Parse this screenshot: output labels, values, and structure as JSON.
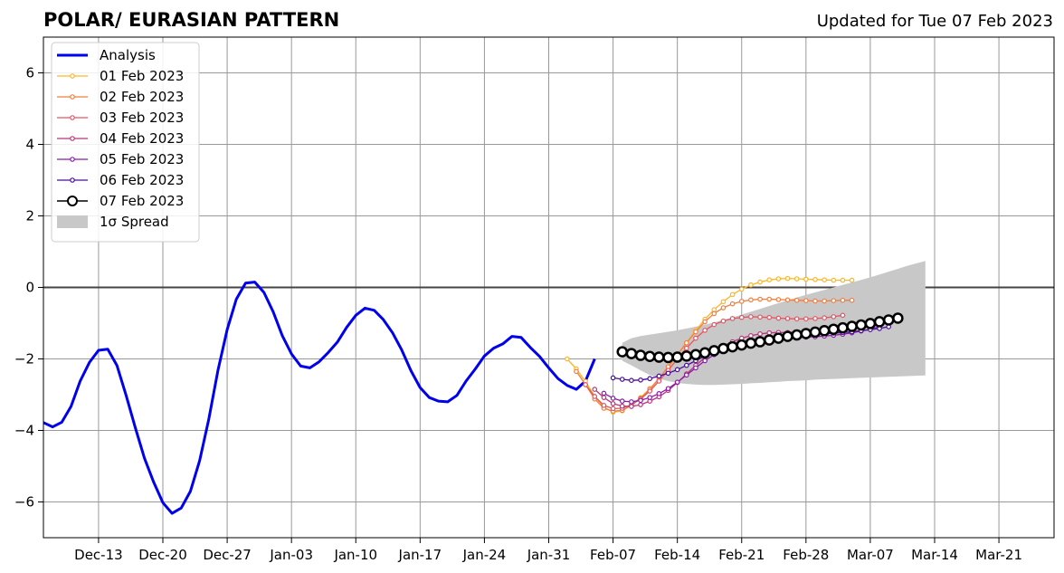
{
  "chart_data": {
    "type": "line",
    "title": "POLAR/ EURASIAN  PATTERN",
    "subtitle": "Updated for Tue 07 Feb 2023",
    "xlabel": "",
    "ylabel": "",
    "ylim": [
      -7,
      7
    ],
    "xlim": [
      "2022-12-07",
      "2023-03-27"
    ],
    "grid": true,
    "legend_position": "top-left",
    "x_ticks": [
      {
        "date": "2022-12-13",
        "label": "Dec-13"
      },
      {
        "date": "2022-12-20",
        "label": "Dec-20"
      },
      {
        "date": "2022-12-27",
        "label": "Dec-27"
      },
      {
        "date": "2023-01-03",
        "label": "Jan-03"
      },
      {
        "date": "2023-01-10",
        "label": "Jan-10"
      },
      {
        "date": "2023-01-17",
        "label": "Jan-17"
      },
      {
        "date": "2023-01-24",
        "label": "Jan-24"
      },
      {
        "date": "2023-01-31",
        "label": "Jan-31"
      },
      {
        "date": "2023-02-07",
        "label": "Feb-07"
      },
      {
        "date": "2023-02-14",
        "label": "Feb-14"
      },
      {
        "date": "2023-02-21",
        "label": "Feb-21"
      },
      {
        "date": "2023-02-28",
        "label": "Feb-28"
      },
      {
        "date": "2023-03-07",
        "label": "Mar-07"
      },
      {
        "date": "2023-03-14",
        "label": "Mar-14"
      },
      {
        "date": "2023-03-21",
        "label": "Mar-21"
      }
    ],
    "y_ticks": [
      {
        "value": 6,
        "label": "6"
      },
      {
        "value": 4,
        "label": "4"
      },
      {
        "value": 2,
        "label": "2"
      },
      {
        "value": 0,
        "label": "0"
      },
      {
        "value": -2,
        "label": "−2"
      },
      {
        "value": -4,
        "label": "−4"
      },
      {
        "value": -6,
        "label": "−6"
      }
    ],
    "colors": {
      "analysis": "#0000ee",
      "spread": "#c8c8c8",
      "grid": "#999999",
      "zero_line": "#444444"
    },
    "analysis": {
      "name": "Analysis",
      "start": "2022-12-07",
      "values": [
        -3.78,
        -3.9,
        -3.77,
        -3.33,
        -2.62,
        -2.1,
        -1.76,
        -1.73,
        -2.18,
        -3.02,
        -3.92,
        -4.78,
        -5.45,
        -6.02,
        -6.32,
        -6.17,
        -5.7,
        -4.85,
        -3.68,
        -2.32,
        -1.18,
        -0.33,
        0.12,
        0.15,
        -0.14,
        -0.68,
        -1.35,
        -1.86,
        -2.2,
        -2.25,
        -2.08,
        -1.82,
        -1.53,
        -1.12,
        -0.78,
        -0.58,
        -0.64,
        -0.9,
        -1.27,
        -1.75,
        -2.33,
        -2.8,
        -3.08,
        -3.18,
        -3.2,
        -3.02,
        -2.62,
        -2.28,
        -1.92,
        -1.7,
        -1.58,
        -1.37,
        -1.4,
        -1.68,
        -1.93,
        -2.25,
        -2.55,
        -2.74,
        -2.85,
        -2.62,
        -2.0
      ]
    },
    "forecasts": [
      {
        "name": "01 Feb 2023",
        "color": "#fbb62a",
        "start": "2023-02-02",
        "values": [
          -2.0,
          -2.28,
          -2.63,
          -3.05,
          -3.35,
          -3.49,
          -3.45,
          -3.28,
          -3.08,
          -2.83,
          -2.55,
          -2.24,
          -1.9,
          -1.55,
          -1.2,
          -0.89,
          -0.62,
          -0.4,
          -0.2,
          -0.05,
          0.07,
          0.15,
          0.21,
          0.24,
          0.25,
          0.24,
          0.23,
          0.22,
          0.21,
          0.2,
          0.2,
          0.2
        ]
      },
      {
        "name": "02 Feb 2023",
        "color": "#f47d3c",
        "start": "2023-02-03",
        "values": [
          -2.35,
          -2.72,
          -3.12,
          -3.38,
          -3.46,
          -3.44,
          -3.3,
          -3.1,
          -2.85,
          -2.55,
          -2.22,
          -1.88,
          -1.55,
          -1.24,
          -0.96,
          -0.73,
          -0.57,
          -0.46,
          -0.39,
          -0.35,
          -0.33,
          -0.33,
          -0.34,
          -0.35,
          -0.36,
          -0.37,
          -0.38,
          -0.38,
          -0.37,
          -0.36,
          -0.36
        ]
      },
      {
        "name": "03 Feb 2023",
        "color": "#e25463",
        "start": "2023-02-04",
        "values": [
          -2.72,
          -3.05,
          -3.3,
          -3.39,
          -3.38,
          -3.28,
          -3.12,
          -2.9,
          -2.62,
          -2.32,
          -2.0,
          -1.7,
          -1.42,
          -1.2,
          -1.04,
          -0.94,
          -0.87,
          -0.84,
          -0.82,
          -0.83,
          -0.84,
          -0.86,
          -0.87,
          -0.88,
          -0.88,
          -0.87,
          -0.85,
          -0.82,
          -0.78
        ]
      },
      {
        "name": "04 Feb 2023",
        "color": "#b9367b",
        "start": "2023-02-05",
        "values": [
          -2.85,
          -3.08,
          -3.25,
          -3.32,
          -3.33,
          -3.28,
          -3.18,
          -3.06,
          -2.88,
          -2.66,
          -2.42,
          -2.18,
          -1.96,
          -1.78,
          -1.63,
          -1.52,
          -1.42,
          -1.35,
          -1.3,
          -1.27,
          -1.26,
          -1.26,
          -1.25,
          -1.23,
          -1.21,
          -1.19,
          -1.17,
          -1.14,
          -1.11,
          -1.08
        ]
      },
      {
        "name": "05 Feb 2023",
        "color": "#8a1ba6",
        "start": "2023-02-06",
        "values": [
          -2.96,
          -3.1,
          -3.18,
          -3.2,
          -3.16,
          -3.08,
          -2.97,
          -2.83,
          -2.65,
          -2.45,
          -2.25,
          -2.05,
          -1.88,
          -1.74,
          -1.62,
          -1.53,
          -1.47,
          -1.43,
          -1.41,
          -1.4,
          -1.4,
          -1.4,
          -1.39,
          -1.38,
          -1.36,
          -1.34,
          -1.31,
          -1.27,
          -1.22,
          -1.17,
          -1.1
        ]
      },
      {
        "name": "06 Feb 2023",
        "color": "#4a0c9a",
        "start": "2023-02-07",
        "values": [
          -2.53,
          -2.57,
          -2.6,
          -2.59,
          -2.55,
          -2.48,
          -2.4,
          -2.3,
          -2.18,
          -2.05,
          -1.92,
          -1.8,
          -1.7,
          -1.62,
          -1.55,
          -1.49,
          -1.44,
          -1.4,
          -1.37,
          -1.35,
          -1.33,
          -1.32,
          -1.31,
          -1.3,
          -1.28,
          -1.26,
          -1.24,
          -1.21,
          -1.18,
          -1.15,
          -1.1
        ]
      },
      {
        "name": "07 Feb 2023",
        "color": "#000000",
        "start": "2023-02-08",
        "hollow_markers": true,
        "values": [
          -1.8,
          -1.85,
          -1.9,
          -1.93,
          -1.95,
          -1.96,
          -1.95,
          -1.92,
          -1.88,
          -1.83,
          -1.77,
          -1.71,
          -1.66,
          -1.61,
          -1.56,
          -1.52,
          -1.47,
          -1.42,
          -1.37,
          -1.33,
          -1.29,
          -1.25,
          -1.21,
          -1.17,
          -1.13,
          -1.09,
          -1.05,
          -1.01,
          -0.96,
          -0.91,
          -0.86
        ]
      }
    ],
    "spread": {
      "name": "1σ Spread",
      "start": "2023-02-08",
      "upper": [
        -1.55,
        -1.42,
        -1.36,
        -1.32,
        -1.28,
        -1.24,
        -1.2,
        -1.15,
        -1.1,
        -1.04,
        -0.98,
        -0.91,
        -0.84,
        -0.76,
        -0.68,
        -0.6,
        -0.52,
        -0.44,
        -0.36,
        -0.28,
        -0.21,
        -0.14,
        -0.07,
        0.0,
        0.07,
        0.14,
        0.21,
        0.28,
        0.36,
        0.44,
        0.52,
        0.6,
        0.67,
        0.74
      ],
      "lower": [
        -2.05,
        -2.18,
        -2.32,
        -2.45,
        -2.55,
        -2.62,
        -2.67,
        -2.7,
        -2.72,
        -2.73,
        -2.73,
        -2.72,
        -2.71,
        -2.7,
        -2.68,
        -2.67,
        -2.65,
        -2.64,
        -2.62,
        -2.61,
        -2.6,
        -2.58,
        -2.57,
        -2.56,
        -2.55,
        -2.54,
        -2.53,
        -2.52,
        -2.51,
        -2.5,
        -2.49,
        -2.48,
        -2.47,
        -2.46
      ]
    }
  }
}
